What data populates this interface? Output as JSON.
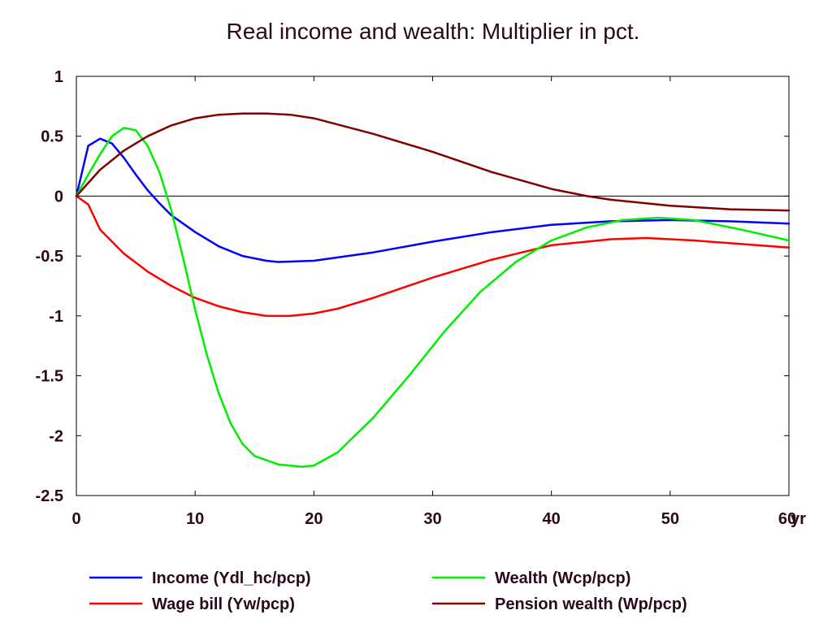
{
  "chart_data": {
    "type": "line",
    "title": "Real income and wealth: Multiplier in pct.",
    "xlabel": "",
    "ylabel": "",
    "x_unit_label": "yr",
    "xlim": [
      0,
      60
    ],
    "ylim": [
      -2.5,
      1
    ],
    "x_ticks": [
      "0",
      "10",
      "20",
      "30",
      "40",
      "50",
      "60"
    ],
    "y_ticks": [
      "1",
      "0.5",
      "0",
      "-0.5",
      "-1",
      "-1.5",
      "-2",
      "-2.5"
    ],
    "grid": false,
    "zero_line": true,
    "legend_position": "bottom",
    "series": [
      {
        "name": "Income (Ydl_hc/pcp)",
        "color": "#0000ff",
        "points": [
          [
            0,
            0
          ],
          [
            1,
            0.42
          ],
          [
            2,
            0.48
          ],
          [
            3,
            0.44
          ],
          [
            4,
            0.32
          ],
          [
            5,
            0.18
          ],
          [
            6,
            0.05
          ],
          [
            7,
            -0.06
          ],
          [
            8,
            -0.16
          ],
          [
            10,
            -0.3
          ],
          [
            12,
            -0.42
          ],
          [
            14,
            -0.5
          ],
          [
            16,
            -0.54
          ],
          [
            17,
            -0.55
          ],
          [
            20,
            -0.54
          ],
          [
            25,
            -0.47
          ],
          [
            30,
            -0.38
          ],
          [
            35,
            -0.3
          ],
          [
            40,
            -0.24
          ],
          [
            45,
            -0.21
          ],
          [
            50,
            -0.2
          ],
          [
            55,
            -0.21
          ],
          [
            60,
            -0.23
          ]
        ]
      },
      {
        "name": "Wage bill (Yw/pcp)",
        "color": "#ff0000",
        "points": [
          [
            0,
            0
          ],
          [
            1,
            -0.07
          ],
          [
            2,
            -0.28
          ],
          [
            4,
            -0.48
          ],
          [
            6,
            -0.63
          ],
          [
            8,
            -0.75
          ],
          [
            10,
            -0.85
          ],
          [
            12,
            -0.92
          ],
          [
            14,
            -0.97
          ],
          [
            16,
            -1.0
          ],
          [
            18,
            -1.0
          ],
          [
            20,
            -0.98
          ],
          [
            22,
            -0.94
          ],
          [
            25,
            -0.85
          ],
          [
            30,
            -0.68
          ],
          [
            35,
            -0.53
          ],
          [
            40,
            -0.41
          ],
          [
            45,
            -0.36
          ],
          [
            48,
            -0.35
          ],
          [
            52,
            -0.37
          ],
          [
            56,
            -0.4
          ],
          [
            60,
            -0.43
          ]
        ]
      },
      {
        "name": "Wealth (Wcp/pcp)",
        "color": "#00ee00",
        "points": [
          [
            0,
            0
          ],
          [
            1,
            0.18
          ],
          [
            2,
            0.35
          ],
          [
            3,
            0.5
          ],
          [
            4,
            0.57
          ],
          [
            5,
            0.55
          ],
          [
            6,
            0.42
          ],
          [
            7,
            0.2
          ],
          [
            8,
            -0.12
          ],
          [
            9,
            -0.52
          ],
          [
            10,
            -0.95
          ],
          [
            11,
            -1.33
          ],
          [
            12,
            -1.65
          ],
          [
            13,
            -1.9
          ],
          [
            14,
            -2.07
          ],
          [
            15,
            -2.17
          ],
          [
            17,
            -2.24
          ],
          [
            19,
            -2.26
          ],
          [
            20,
            -2.25
          ],
          [
            22,
            -2.14
          ],
          [
            25,
            -1.85
          ],
          [
            28,
            -1.5
          ],
          [
            31,
            -1.13
          ],
          [
            34,
            -0.8
          ],
          [
            37,
            -0.55
          ],
          [
            40,
            -0.37
          ],
          [
            43,
            -0.26
          ],
          [
            46,
            -0.2
          ],
          [
            49,
            -0.18
          ],
          [
            52,
            -0.2
          ],
          [
            56,
            -0.28
          ],
          [
            60,
            -0.37
          ]
        ]
      },
      {
        "name": "Pension wealth (Wp/pcp)",
        "color": "#800000",
        "points": [
          [
            0,
            0
          ],
          [
            2,
            0.22
          ],
          [
            4,
            0.38
          ],
          [
            6,
            0.5
          ],
          [
            8,
            0.59
          ],
          [
            10,
            0.65
          ],
          [
            12,
            0.68
          ],
          [
            14,
            0.69
          ],
          [
            16,
            0.69
          ],
          [
            18,
            0.68
          ],
          [
            20,
            0.65
          ],
          [
            25,
            0.52
          ],
          [
            30,
            0.37
          ],
          [
            35,
            0.2
          ],
          [
            40,
            0.06
          ],
          [
            43,
            0.0
          ],
          [
            45,
            -0.03
          ],
          [
            50,
            -0.08
          ],
          [
            55,
            -0.11
          ],
          [
            60,
            -0.12
          ]
        ]
      }
    ]
  }
}
